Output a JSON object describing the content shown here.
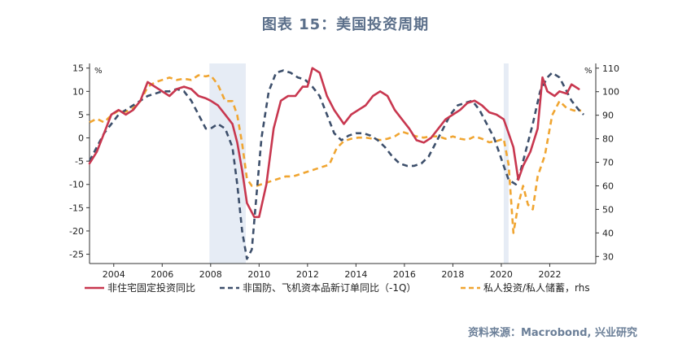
{
  "title": "图表 15：美国投资周期",
  "source": "资料来源：Macrobond, 兴业研究",
  "chart_data": {
    "type": "line",
    "left_axis": {
      "unit": "%",
      "ylim": [
        -27,
        16
      ],
      "ticks": [
        15,
        10,
        5,
        0,
        -5,
        -10,
        -15,
        -20,
        -25
      ]
    },
    "right_axis": {
      "unit": "%",
      "ylim": [
        27,
        112
      ],
      "ticks": [
        110,
        100,
        90,
        80,
        70,
        60,
        50,
        40,
        30
      ]
    },
    "x_range": [
      2003.0,
      2023.9
    ],
    "x_ticks": [
      2004,
      2006,
      2008,
      2010,
      2012,
      2014,
      2016,
      2018,
      2020,
      2022
    ],
    "grid": false,
    "legend_position": "bottom",
    "recessions": [
      [
        2007.95,
        2009.45
      ],
      [
        2020.1,
        2020.3
      ]
    ],
    "series": [
      {
        "name": "非住宅固定投资同比",
        "axis": "left",
        "color": "#c8374f",
        "style": "solid",
        "points": [
          [
            2003.0,
            -5.5
          ],
          [
            2003.3,
            -3
          ],
          [
            2003.6,
            1
          ],
          [
            2003.9,
            5
          ],
          [
            2004.2,
            6
          ],
          [
            2004.5,
            5
          ],
          [
            2004.8,
            6
          ],
          [
            2005.1,
            8
          ],
          [
            2005.4,
            12
          ],
          [
            2005.7,
            11
          ],
          [
            2006.0,
            10
          ],
          [
            2006.3,
            9
          ],
          [
            2006.6,
            10.5
          ],
          [
            2006.9,
            11
          ],
          [
            2007.2,
            10.5
          ],
          [
            2007.5,
            9
          ],
          [
            2007.8,
            8.5
          ],
          [
            2008.0,
            8
          ],
          [
            2008.3,
            7
          ],
          [
            2008.6,
            5
          ],
          [
            2008.9,
            3
          ],
          [
            2009.1,
            -1
          ],
          [
            2009.3,
            -7
          ],
          [
            2009.5,
            -14
          ],
          [
            2009.8,
            -17
          ],
          [
            2010.0,
            -17
          ],
          [
            2010.3,
            -10
          ],
          [
            2010.6,
            2
          ],
          [
            2010.9,
            8
          ],
          [
            2011.2,
            9
          ],
          [
            2011.5,
            9
          ],
          [
            2011.8,
            11
          ],
          [
            2012.0,
            11
          ],
          [
            2012.2,
            15
          ],
          [
            2012.5,
            14
          ],
          [
            2012.8,
            9
          ],
          [
            2013.1,
            6
          ],
          [
            2013.5,
            3
          ],
          [
            2013.8,
            5
          ],
          [
            2014.1,
            6
          ],
          [
            2014.4,
            7
          ],
          [
            2014.7,
            9
          ],
          [
            2015.0,
            10
          ],
          [
            2015.3,
            9
          ],
          [
            2015.6,
            6
          ],
          [
            2015.9,
            4
          ],
          [
            2016.2,
            2
          ],
          [
            2016.5,
            -0.5
          ],
          [
            2016.8,
            -1
          ],
          [
            2017.1,
            0
          ],
          [
            2017.4,
            2
          ],
          [
            2017.7,
            4
          ],
          [
            2018.0,
            5
          ],
          [
            2018.3,
            6
          ],
          [
            2018.6,
            7.5
          ],
          [
            2018.9,
            8
          ],
          [
            2019.2,
            7
          ],
          [
            2019.5,
            5.5
          ],
          [
            2019.8,
            5
          ],
          [
            2020.1,
            4
          ],
          [
            2020.3,
            1
          ],
          [
            2020.5,
            -2
          ],
          [
            2020.7,
            -9
          ],
          [
            2020.9,
            -6
          ],
          [
            2021.2,
            -3
          ],
          [
            2021.5,
            2
          ],
          [
            2021.7,
            13
          ],
          [
            2021.9,
            10
          ],
          [
            2022.2,
            9
          ],
          [
            2022.4,
            10
          ],
          [
            2022.7,
            9.5
          ],
          [
            2022.9,
            11.5
          ],
          [
            2023.2,
            10.5
          ]
        ]
      },
      {
        "name": "非国防、飞机资本品新订单同比（-1Q）",
        "axis": "left",
        "color": "#3d4f6b",
        "style": "dashed",
        "points": [
          [
            2003.0,
            -5
          ],
          [
            2003.3,
            -2
          ],
          [
            2003.6,
            1
          ],
          [
            2003.9,
            3
          ],
          [
            2004.2,
            5
          ],
          [
            2004.5,
            6
          ],
          [
            2004.8,
            7
          ],
          [
            2005.1,
            8
          ],
          [
            2005.4,
            9
          ],
          [
            2005.7,
            9.5
          ],
          [
            2006.0,
            10
          ],
          [
            2006.3,
            10
          ],
          [
            2006.6,
            10.5
          ],
          [
            2006.9,
            10
          ],
          [
            2007.2,
            8
          ],
          [
            2007.5,
            5
          ],
          [
            2007.8,
            2
          ],
          [
            2008.0,
            2
          ],
          [
            2008.3,
            3
          ],
          [
            2008.6,
            2
          ],
          [
            2008.9,
            -2
          ],
          [
            2009.1,
            -10
          ],
          [
            2009.3,
            -20
          ],
          [
            2009.5,
            -26
          ],
          [
            2009.7,
            -24
          ],
          [
            2009.9,
            -12
          ],
          [
            2010.1,
            0
          ],
          [
            2010.4,
            10
          ],
          [
            2010.7,
            14
          ],
          [
            2011.0,
            14.5
          ],
          [
            2011.3,
            14
          ],
          [
            2011.6,
            13
          ],
          [
            2011.9,
            12.5
          ],
          [
            2012.2,
            11
          ],
          [
            2012.5,
            9
          ],
          [
            2012.8,
            5
          ],
          [
            2013.1,
            1
          ],
          [
            2013.4,
            -0.5
          ],
          [
            2013.7,
            0.5
          ],
          [
            2014.0,
            1
          ],
          [
            2014.3,
            1
          ],
          [
            2014.6,
            0.5
          ],
          [
            2014.9,
            -0.5
          ],
          [
            2015.2,
            -2
          ],
          [
            2015.5,
            -4
          ],
          [
            2015.8,
            -5.5
          ],
          [
            2016.1,
            -6
          ],
          [
            2016.4,
            -6
          ],
          [
            2016.7,
            -5.5
          ],
          [
            2017.0,
            -4
          ],
          [
            2017.3,
            -1
          ],
          [
            2017.6,
            2
          ],
          [
            2017.9,
            5
          ],
          [
            2018.2,
            7
          ],
          [
            2018.5,
            7.5
          ],
          [
            2018.8,
            8
          ],
          [
            2019.1,
            6
          ],
          [
            2019.4,
            3
          ],
          [
            2019.7,
            0
          ],
          [
            2019.9,
            -3
          ],
          [
            2020.1,
            -6
          ],
          [
            2020.3,
            -9
          ],
          [
            2020.6,
            -10
          ],
          [
            2020.8,
            -7
          ],
          [
            2021.0,
            -3
          ],
          [
            2021.3,
            3
          ],
          [
            2021.6,
            10
          ],
          [
            2021.9,
            13
          ],
          [
            2022.1,
            14
          ],
          [
            2022.4,
            13
          ],
          [
            2022.7,
            10
          ],
          [
            2022.9,
            8
          ],
          [
            2023.2,
            6
          ],
          [
            2023.4,
            5
          ]
        ]
      },
      {
        "name": "私人投资/私人储蓄，rhs",
        "axis": "right",
        "color": "#f0a531",
        "style": "dashed",
        "points": [
          [
            2003.0,
            87
          ],
          [
            2003.3,
            88.5
          ],
          [
            2003.6,
            87
          ],
          [
            2003.9,
            90
          ],
          [
            2004.2,
            92
          ],
          [
            2004.5,
            91.5
          ],
          [
            2004.8,
            93
          ],
          [
            2005.1,
            96
          ],
          [
            2005.4,
            102
          ],
          [
            2005.7,
            104
          ],
          [
            2006.0,
            105
          ],
          [
            2006.3,
            106
          ],
          [
            2006.6,
            105
          ],
          [
            2006.9,
            105.5
          ],
          [
            2007.2,
            105
          ],
          [
            2007.5,
            107
          ],
          [
            2007.8,
            106.5
          ],
          [
            2008.0,
            107
          ],
          [
            2008.3,
            103
          ],
          [
            2008.6,
            96
          ],
          [
            2008.9,
            96
          ],
          [
            2009.1,
            90
          ],
          [
            2009.3,
            78
          ],
          [
            2009.5,
            63
          ],
          [
            2009.7,
            60
          ],
          [
            2009.9,
            60
          ],
          [
            2010.2,
            61
          ],
          [
            2010.5,
            62
          ],
          [
            2010.8,
            63
          ],
          [
            2011.1,
            64
          ],
          [
            2011.4,
            64
          ],
          [
            2011.7,
            65
          ],
          [
            2012.0,
            66
          ],
          [
            2012.3,
            67
          ],
          [
            2012.6,
            68
          ],
          [
            2012.9,
            69
          ],
          [
            2013.2,
            76
          ],
          [
            2013.5,
            79
          ],
          [
            2013.8,
            80
          ],
          [
            2014.1,
            80.5
          ],
          [
            2014.4,
            80.5
          ],
          [
            2014.7,
            80
          ],
          [
            2015.0,
            79.5
          ],
          [
            2015.3,
            80
          ],
          [
            2015.6,
            81
          ],
          [
            2015.9,
            83
          ],
          [
            2016.2,
            82
          ],
          [
            2016.5,
            81
          ],
          [
            2016.8,
            80.5
          ],
          [
            2017.1,
            81
          ],
          [
            2017.4,
            81
          ],
          [
            2017.7,
            80
          ],
          [
            2018.0,
            81
          ],
          [
            2018.3,
            80
          ],
          [
            2018.6,
            79.5
          ],
          [
            2018.9,
            81
          ],
          [
            2019.2,
            80
          ],
          [
            2019.5,
            78.5
          ],
          [
            2019.8,
            79
          ],
          [
            2020.1,
            80
          ],
          [
            2020.3,
            69
          ],
          [
            2020.5,
            40
          ],
          [
            2020.7,
            52
          ],
          [
            2020.9,
            60
          ],
          [
            2021.1,
            52
          ],
          [
            2021.3,
            50
          ],
          [
            2021.5,
            64
          ],
          [
            2021.8,
            73
          ],
          [
            2022.1,
            90
          ],
          [
            2022.4,
            96
          ],
          [
            2022.7,
            93
          ],
          [
            2023.0,
            92
          ],
          [
            2023.3,
            92
          ]
        ]
      }
    ]
  }
}
